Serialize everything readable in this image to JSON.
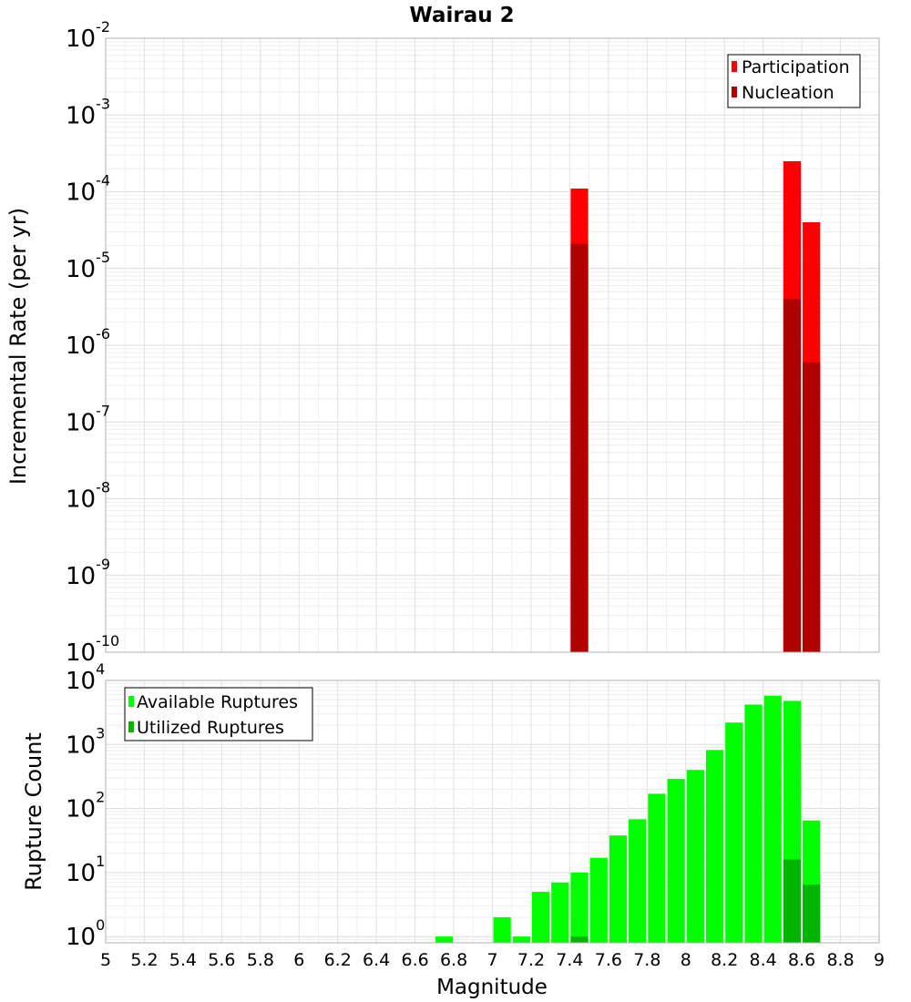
{
  "chart_data": [
    {
      "type": "bar",
      "title": "Wairau 2",
      "xlabel": "Magnitude",
      "ylabel": "Incremental Rate (per yr)",
      "y_scale": "log",
      "ylim": [
        1e-10,
        0.01
      ],
      "xlim": [
        5,
        9
      ],
      "grid": true,
      "legend_position": "top-right",
      "series": [
        {
          "name": "Participation",
          "color": "#ff0000",
          "points": [
            {
              "x": 7.45,
              "y": 0.00011
            },
            {
              "x": 8.55,
              "y": 0.00025
            },
            {
              "x": 8.65,
              "y": 4e-05
            }
          ]
        },
        {
          "name": "Nucleation",
          "color": "#b00000",
          "points": [
            {
              "x": 7.45,
              "y": 2.1e-05
            },
            {
              "x": 8.55,
              "y": 4e-06
            },
            {
              "x": 8.65,
              "y": 6e-07
            }
          ]
        }
      ]
    },
    {
      "type": "bar",
      "xlabel": "Magnitude",
      "ylabel": "Rupture Count",
      "y_scale": "log",
      "ylim": [
        0.8,
        10000
      ],
      "xlim": [
        5,
        9
      ],
      "grid": true,
      "legend_position": "top-left",
      "series": [
        {
          "name": "Available Ruptures",
          "color": "#00ff00",
          "points": [
            {
              "x": 6.75,
              "y": 1
            },
            {
              "x": 7.05,
              "y": 2
            },
            {
              "x": 7.15,
              "y": 1
            },
            {
              "x": 7.25,
              "y": 5
            },
            {
              "x": 7.35,
              "y": 7
            },
            {
              "x": 7.45,
              "y": 10
            },
            {
              "x": 7.55,
              "y": 17
            },
            {
              "x": 7.65,
              "y": 38
            },
            {
              "x": 7.75,
              "y": 68
            },
            {
              "x": 7.85,
              "y": 170
            },
            {
              "x": 7.95,
              "y": 290
            },
            {
              "x": 8.05,
              "y": 400
            },
            {
              "x": 8.15,
              "y": 820
            },
            {
              "x": 8.25,
              "y": 2200
            },
            {
              "x": 8.35,
              "y": 4200
            },
            {
              "x": 8.45,
              "y": 5800
            },
            {
              "x": 8.55,
              "y": 4800
            },
            {
              "x": 8.65,
              "y": 65
            }
          ]
        },
        {
          "name": "Utilized Ruptures",
          "color": "#00b400",
          "points": [
            {
              "x": 7.45,
              "y": 1
            },
            {
              "x": 8.55,
              "y": 16
            },
            {
              "x": 8.65,
              "y": 6.5
            }
          ]
        }
      ]
    }
  ],
  "x_ticks": [
    "5",
    "5.2",
    "5.4",
    "5.6",
    "5.8",
    "6",
    "6.2",
    "6.4",
    "6.6",
    "6.8",
    "7",
    "7.2",
    "7.4",
    "7.6",
    "7.8",
    "8",
    "8.2",
    "8.4",
    "8.6",
    "8.8",
    "9"
  ],
  "top_y_exponents": [
    "-2",
    "-3",
    "-4",
    "-5",
    "-6",
    "-7",
    "-8",
    "-9",
    "-10"
  ],
  "bottom_y_exponents": [
    "4",
    "3",
    "2",
    "1",
    "0"
  ],
  "tick_base": "10"
}
